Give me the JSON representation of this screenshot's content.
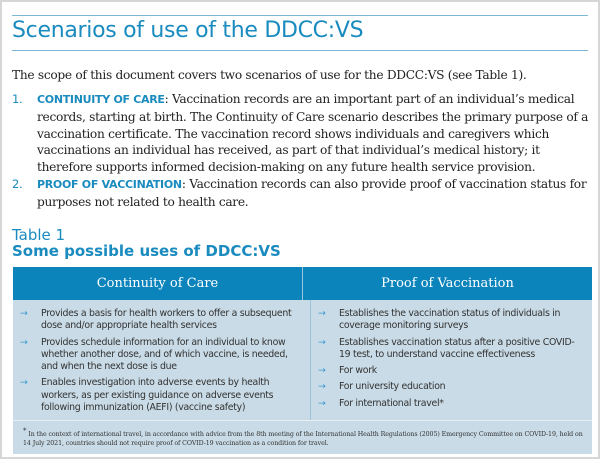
{
  "heading": "Scenarios of use of the DDCC:VS",
  "intro": "The scope of this document covers two scenarios of use for the DDCC:VS (see Table 1).",
  "scenarios": [
    {
      "number": "1.",
      "keyword": "CONTINUITY OF CARE",
      "text": ": Vaccination records are an important part of an individual’s medical records, starting at birth. The Continuity of Care scenario describes the primary purpose of a vaccination certificate. The vaccination record shows individuals and caregivers which vaccinations an individual has received, as part of that individual’s medical history; it therefore supports informed decision-making on any future health service provision."
    },
    {
      "number": "2.",
      "keyword": "PROOF OF VACCINATION",
      "text": ": Vaccination records can also provide proof of vaccination status for purposes not related to health care."
    }
  ],
  "table": {
    "label": "Table 1",
    "caption": "Some possible uses of DDCC:VS",
    "headers": [
      "Continuity of Care",
      "Proof of Vaccination"
    ],
    "arrow_icon": "→",
    "col1": [
      "Provides a basis for health workers to offer a subsequent dose and/or appropriate health services",
      "Provides schedule information for an individual to know whether another dose, and of which vaccine, is needed, and when the next dose is due",
      "Enables investigation into adverse events by health workers, as per existing guidance on adverse events following immunization (AEFI) (vaccine safety)"
    ],
    "col2": [
      "Establishes the vaccination status of individuals in coverage monitoring surveys",
      "Establishes vaccination status after a positive COVID-19 test, to understand vaccine effectiveness",
      "For work",
      "For university education",
      "For international travel*"
    ],
    "footnote_mark": "*",
    "footnote": "In the context of international travel, in accordance with advice from the 8th meeting of the International Health Regulations (2005) Emergency Committee on COVID-19, held on 14 July 2021, countries should not require proof of COVID-19 vaccination as a condition for travel."
  },
  "colors": {
    "accent": "#1a8bbf",
    "header_bg": "#0b84bc",
    "body_bg": "#c9dbe6"
  }
}
